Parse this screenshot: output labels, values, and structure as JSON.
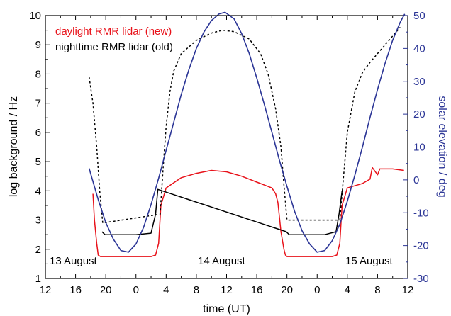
{
  "chart_data": {
    "type": "line",
    "xlabel": "time (UT)",
    "ylabel_left": "log background / Hz",
    "ylabel_right": "solar elevation / deg",
    "x_ticks": [
      "12",
      "16",
      "20",
      "0",
      "4",
      "8",
      "12",
      "16",
      "20",
      "0",
      "4",
      "8",
      "12"
    ],
    "x_tick_hours": [
      0,
      4,
      8,
      12,
      16,
      20,
      24,
      28,
      32,
      36,
      40,
      44,
      48
    ],
    "xlim_hours": [
      0,
      48
    ],
    "ylim_left": [
      1,
      10
    ],
    "y_ticks_left": [
      "1",
      "2",
      "3",
      "4",
      "5",
      "6",
      "7",
      "8",
      "9",
      "10"
    ],
    "ylim_right": [
      -30,
      50
    ],
    "y_ticks_right": [
      "-30",
      "-20",
      "-10",
      "0",
      "10",
      "20",
      "30",
      "40",
      "50"
    ],
    "series": [
      {
        "name": "daylight RMR lidar (new)",
        "color": "#e8121a",
        "style": "solid",
        "axis": "left",
        "x": [
          6.3,
          6.5,
          6.8,
          7.0,
          7.3,
          8.0,
          9.0,
          14.0,
          14.6,
          15.0,
          15.3,
          16.0,
          18.0,
          20.0,
          22.0,
          24.0,
          26.0,
          27.0,
          28.0,
          29.0,
          30.0,
          30.5,
          30.8,
          31.2,
          31.6,
          31.8,
          32.0,
          33.0,
          38.0,
          38.6,
          39.0,
          39.3,
          40.0,
          42.0,
          43.0,
          43.3,
          44.0,
          44.3,
          46.0,
          47.5
        ],
        "y": [
          3.9,
          3.0,
          2.2,
          1.8,
          1.75,
          1.75,
          1.75,
          1.75,
          1.8,
          2.2,
          3.5,
          4.1,
          4.45,
          4.6,
          4.7,
          4.65,
          4.5,
          4.4,
          4.3,
          4.2,
          4.1,
          3.9,
          3.6,
          2.6,
          2.0,
          1.8,
          1.75,
          1.75,
          1.75,
          1.8,
          2.2,
          3.5,
          4.1,
          4.25,
          4.4,
          4.8,
          4.55,
          4.75,
          4.75,
          4.7
        ]
      },
      {
        "name": "nighttime RMR lidar (old)",
        "color": "#000000",
        "style": "solid",
        "axis": "left",
        "x": [
          7.5,
          7.9,
          8.5,
          10.0,
          12.0,
          14.0,
          14.6,
          14.9,
          31.9,
          32.3,
          33.0,
          35.0,
          37.0,
          38.5,
          38.9,
          39.3
        ],
        "y": [
          2.6,
          2.5,
          2.5,
          2.5,
          2.5,
          2.55,
          3.2,
          4.05,
          2.6,
          2.5,
          2.5,
          2.5,
          2.5,
          2.6,
          3.2,
          4.0
        ]
      },
      {
        "name": "",
        "color": "#000000",
        "style": "dotted",
        "axis": "left",
        "x": [
          5.8,
          6.3,
          6.8,
          7.2,
          7.6,
          15.2,
          15.6,
          16.0,
          16.5,
          17.0,
          18.0,
          20.0,
          22.0,
          23.5,
          25.0,
          27.0,
          28.5,
          29.5,
          30.5,
          31.2,
          31.6,
          32.0,
          39.0,
          39.5,
          40.0,
          41.0,
          42.0,
          43.0,
          44.0,
          45.0,
          46.0,
          47.0
        ],
        "y": [
          7.9,
          7.0,
          5.5,
          4.0,
          2.9,
          3.2,
          4.8,
          6.2,
          7.4,
          8.1,
          8.7,
          9.15,
          9.4,
          9.5,
          9.45,
          9.2,
          8.7,
          8.0,
          6.8,
          5.5,
          4.2,
          3.0,
          3.0,
          4.5,
          6.0,
          7.4,
          8.05,
          8.4,
          8.7,
          9.0,
          9.3,
          9.6
        ]
      },
      {
        "name": "",
        "color": "#2b3596",
        "style": "solid",
        "axis": "right",
        "x": [
          5.8,
          7.0,
          8.0,
          9.0,
          10.0,
          11.0,
          12.0,
          13.0,
          14.0,
          15.0,
          16.0,
          17.0,
          18.0,
          19.0,
          20.0,
          21.0,
          22.0,
          23.0,
          23.8,
          25.0,
          26.0,
          27.0,
          28.0,
          29.0,
          30.0,
          31.0,
          32.0,
          33.0,
          34.0,
          35.0,
          36.0,
          37.0,
          38.0,
          39.0,
          40.0,
          41.0,
          42.0,
          43.0,
          44.0,
          45.0,
          46.0,
          47.0,
          47.6
        ],
        "y": [
          3.5,
          -6.0,
          -13.0,
          -18.0,
          -21.5,
          -22.0,
          -19.5,
          -14.5,
          -7.5,
          0.5,
          9.0,
          17.5,
          26.0,
          33.5,
          40.0,
          45.0,
          48.5,
          50.5,
          51.0,
          49.0,
          44.5,
          38.5,
          31.0,
          23.0,
          14.5,
          6.0,
          -2.0,
          -9.5,
          -15.5,
          -19.5,
          -22.0,
          -21.5,
          -18.5,
          -13.5,
          -6.5,
          1.5,
          10.0,
          19.0,
          27.5,
          35.5,
          42.5,
          48.0,
          50.5
        ]
      }
    ],
    "annotations": [
      "13 August",
      "14 August",
      "15 August"
    ],
    "legend_position": "top-left",
    "grid": false
  }
}
